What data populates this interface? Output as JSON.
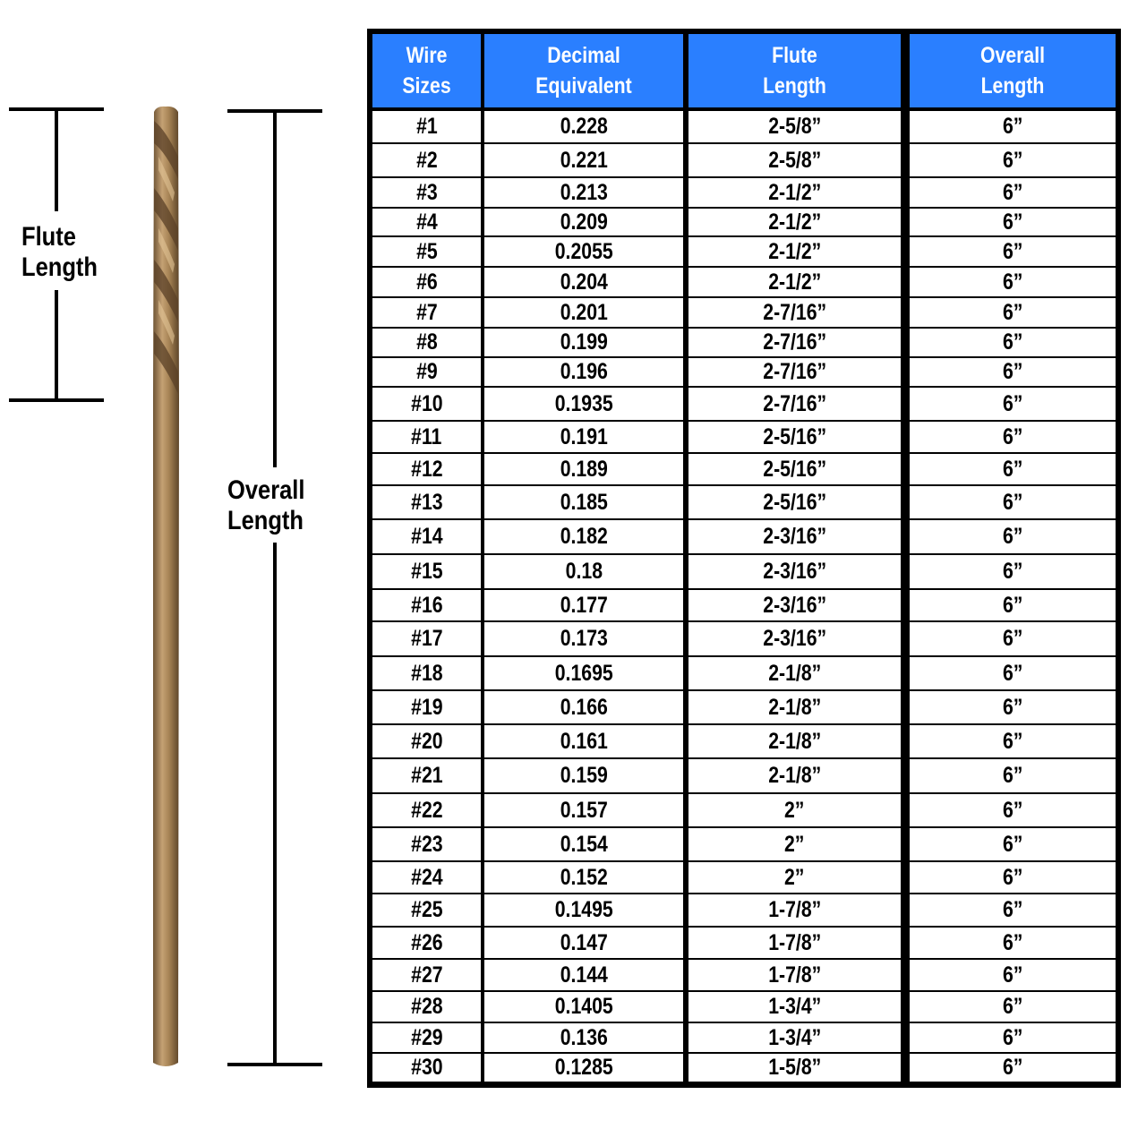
{
  "diagram": {
    "flute_label": [
      "Flute",
      "Length"
    ],
    "overall_label": [
      "Overall",
      "Length"
    ],
    "drill_color": "#a88556"
  },
  "table": {
    "header_color": "#2a7fff",
    "headers": [
      [
        "Wire",
        "Sizes"
      ],
      [
        "Decimal",
        "Equivalent"
      ],
      [
        "Flute",
        "Length"
      ],
      [
        "Overall",
        "Length"
      ]
    ],
    "rows": [
      [
        "#1",
        "0.228",
        "2-5/8”",
        "6”"
      ],
      [
        "#2",
        "0.221",
        "2-5/8”",
        "6”"
      ],
      [
        "#3",
        "0.213",
        "2-1/2”",
        "6”"
      ],
      [
        "#4",
        "0.209",
        "2-1/2”",
        "6”"
      ],
      [
        "#5",
        "0.2055",
        "2-1/2”",
        "6”"
      ],
      [
        "#6",
        "0.204",
        "2-1/2”",
        "6”"
      ],
      [
        "#7",
        "0.201",
        "2-7/16”",
        "6”"
      ],
      [
        "#8",
        "0.199",
        "2-7/16”",
        "6”"
      ],
      [
        "#9",
        "0.196",
        "2-7/16”",
        "6”"
      ],
      [
        "#10",
        "0.1935",
        "2-7/16”",
        "6”"
      ],
      [
        "#11",
        "0.191",
        "2-5/16”",
        "6”"
      ],
      [
        "#12",
        "0.189",
        "2-5/16”",
        "6”"
      ],
      [
        "#13",
        "0.185",
        "2-5/16”",
        "6”"
      ],
      [
        "#14",
        "0.182",
        "2-3/16”",
        "6”"
      ],
      [
        "#15",
        "0.18",
        "2-3/16”",
        "6”"
      ],
      [
        "#16",
        "0.177",
        "2-3/16”",
        "6”"
      ],
      [
        "#17",
        "0.173",
        "2-3/16”",
        "6”"
      ],
      [
        "#18",
        "0.1695",
        "2-1/8”",
        "6”"
      ],
      [
        "#19",
        "0.166",
        "2-1/8”",
        "6”"
      ],
      [
        "#20",
        "0.161",
        "2-1/8”",
        "6”"
      ],
      [
        "#21",
        "0.159",
        "2-1/8”",
        "6”"
      ],
      [
        "#22",
        "0.157",
        "2”",
        "6”"
      ],
      [
        "#23",
        "0.154",
        "2”",
        "6”"
      ],
      [
        "#24",
        "0.152",
        "2”",
        "6”"
      ],
      [
        "#25",
        "0.1495",
        "1-7/8”",
        "6”"
      ],
      [
        "#26",
        "0.147",
        "1-7/8”",
        "6”"
      ],
      [
        "#27",
        "0.144",
        "1-7/8”",
        "6”"
      ],
      [
        "#28",
        "0.1405",
        "1-3/4”",
        "6”"
      ],
      [
        "#29",
        "0.136",
        "1-3/4”",
        "6”"
      ],
      [
        "#30",
        "0.1285",
        "1-5/8”",
        "6”"
      ]
    ]
  }
}
